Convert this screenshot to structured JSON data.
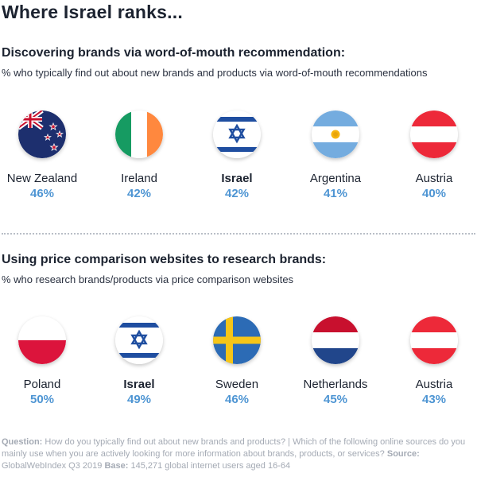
{
  "title": "Where Israel ranks...",
  "chart_data": [
    {
      "type": "table",
      "title": "Discovering brands via word-of-mouth recommendation:",
      "subtitle": "% who typically find out about new brands and products via word-of-mouth recommendations",
      "categories": [
        "New Zealand",
        "Ireland",
        "Israel",
        "Argentina",
        "Austria"
      ],
      "values": [
        46,
        42,
        42,
        41,
        40
      ],
      "value_labels": [
        "46%",
        "42%",
        "42%",
        "41%",
        "40%"
      ],
      "flags": [
        "new-zealand",
        "ireland",
        "israel",
        "argentina",
        "austria"
      ],
      "highlight": "Israel"
    },
    {
      "type": "table",
      "title": "Using price comparison websites to research brands:",
      "subtitle": "% who research brands/products via price comparison websites",
      "categories": [
        "Poland",
        "Israel",
        "Sweden",
        "Netherlands",
        "Austria"
      ],
      "values": [
        50,
        49,
        46,
        45,
        43
      ],
      "value_labels": [
        "50%",
        "49%",
        "46%",
        "45%",
        "43%"
      ],
      "flags": [
        "poland",
        "israel",
        "sweden",
        "netherlands",
        "austria"
      ],
      "highlight": "Israel"
    }
  ],
  "colors": {
    "accent": "#4e95d3",
    "text": "#1c2330",
    "footer": "#a4aab4"
  },
  "footer": {
    "question_label": "Question:",
    "question_text": "How do you typically find out about new brands and products? | Which of the following online sources do you mainly use when you are actively looking for more information about brands, products, or services?",
    "source_label": "Source:",
    "source_text": "GlobalWebIndex Q3 2019",
    "base_label": "Base:",
    "base_text": "145,271 global internet users aged 16-64"
  }
}
